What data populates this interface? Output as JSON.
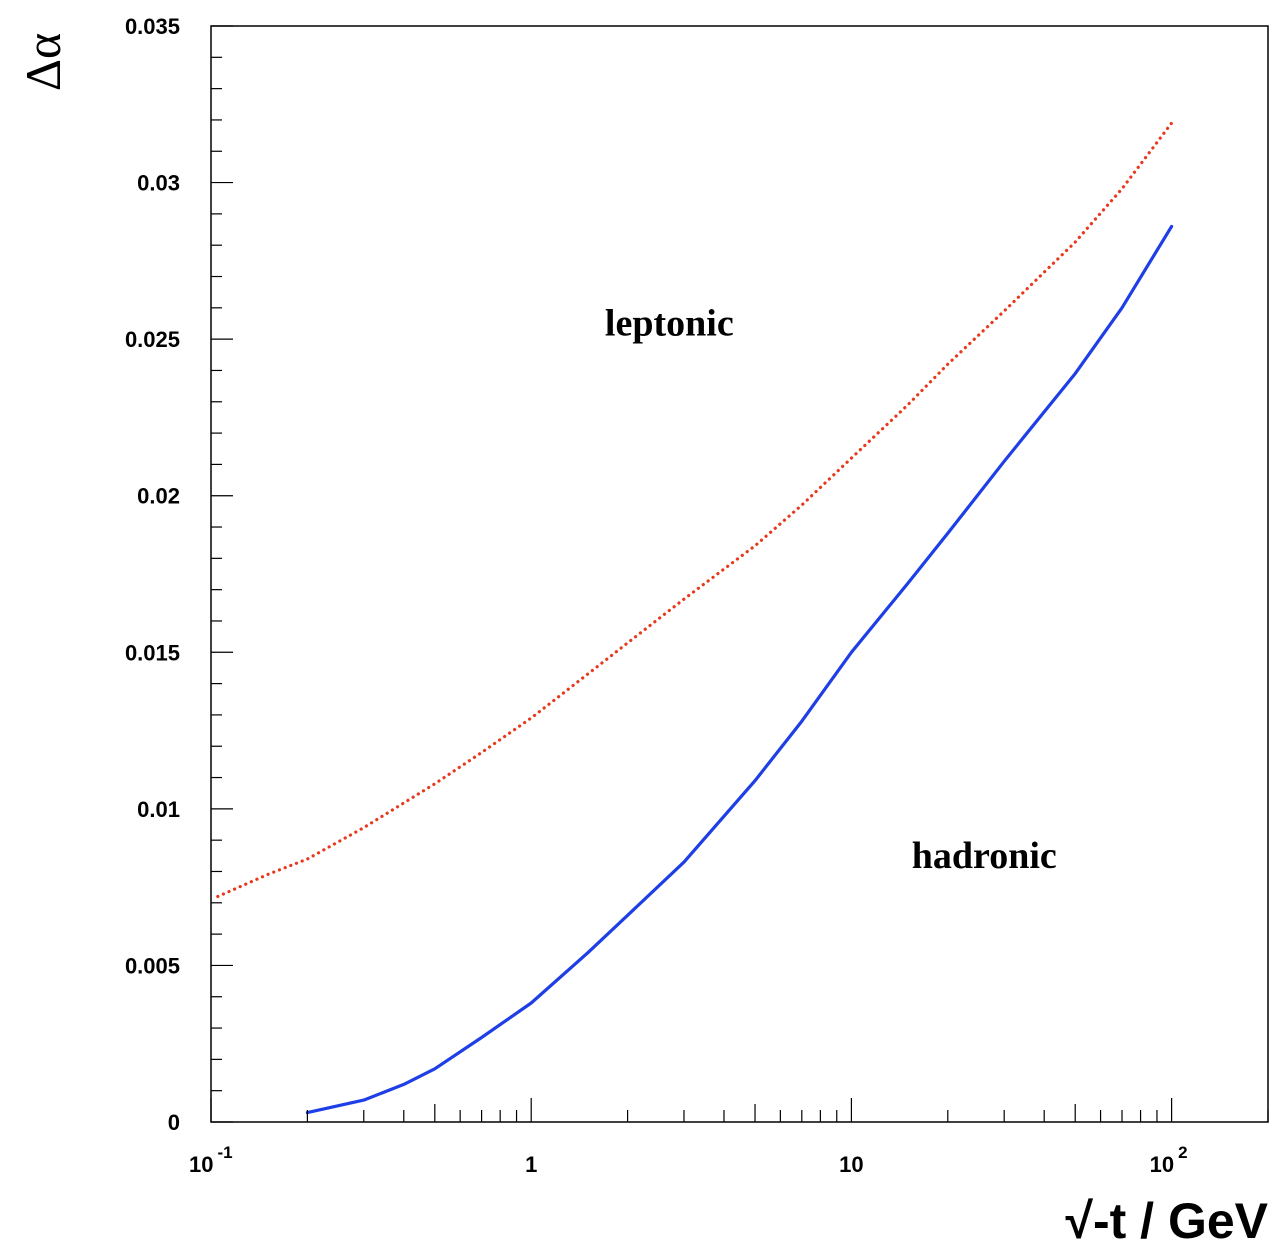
{
  "chart_data": {
    "type": "line",
    "title": "",
    "xlabel": "√-t / GeV",
    "ylabel": "Δα",
    "xscale": "log",
    "xlim": [
      0.1,
      200
    ],
    "ylim": [
      0,
      0.035
    ],
    "grid": false,
    "legend": "none",
    "x_ticks": [
      {
        "value": 0.1,
        "base": "10",
        "exp": "-1"
      },
      {
        "value": 1,
        "base": "1",
        "exp": ""
      },
      {
        "value": 10,
        "base": "10",
        "exp": ""
      },
      {
        "value": 100,
        "base": "10",
        "exp": "2"
      }
    ],
    "y_ticks": [
      {
        "value": 0,
        "label": "0"
      },
      {
        "value": 0.005,
        "label": "0.005"
      },
      {
        "value": 0.01,
        "label": "0.01"
      },
      {
        "value": 0.015,
        "label": "0.015"
      },
      {
        "value": 0.02,
        "label": "0.02"
      },
      {
        "value": 0.025,
        "label": "0.025"
      },
      {
        "value": 0.03,
        "label": "0.03"
      },
      {
        "value": 0.035,
        "label": "0.035"
      }
    ],
    "annotations": [
      {
        "text": "leptonic",
        "x": 2.7,
        "y": 0.0255
      },
      {
        "text": "hadronic",
        "x": 26,
        "y": 0.0085
      }
    ],
    "series": [
      {
        "id": "leptonic",
        "color": "#e8391d",
        "style": "dotted",
        "x": [
          0.105,
          0.15,
          0.2,
          0.3,
          0.5,
          0.7,
          1,
          1.5,
          2,
          3,
          5,
          7,
          10,
          15,
          20,
          30,
          50,
          70,
          100
        ],
        "y": [
          0.0072,
          0.0079,
          0.0084,
          0.0094,
          0.0108,
          0.0118,
          0.0129,
          0.0143,
          0.0153,
          0.0167,
          0.0184,
          0.0197,
          0.0212,
          0.0229,
          0.0242,
          0.0259,
          0.0281,
          0.0298,
          0.0319
        ]
      },
      {
        "id": "hadronic",
        "color": "#1e3ee6",
        "style": "solid",
        "x": [
          0.2,
          0.3,
          0.4,
          0.5,
          0.7,
          1,
          1.5,
          2,
          3,
          5,
          7,
          10,
          15,
          20,
          30,
          50,
          70,
          100
        ],
        "y": [
          0.0003,
          0.0007,
          0.0012,
          0.0017,
          0.0027,
          0.0038,
          0.0054,
          0.0066,
          0.0083,
          0.0109,
          0.0128,
          0.015,
          0.0172,
          0.0188,
          0.0211,
          0.0239,
          0.026,
          0.0286
        ]
      }
    ]
  }
}
